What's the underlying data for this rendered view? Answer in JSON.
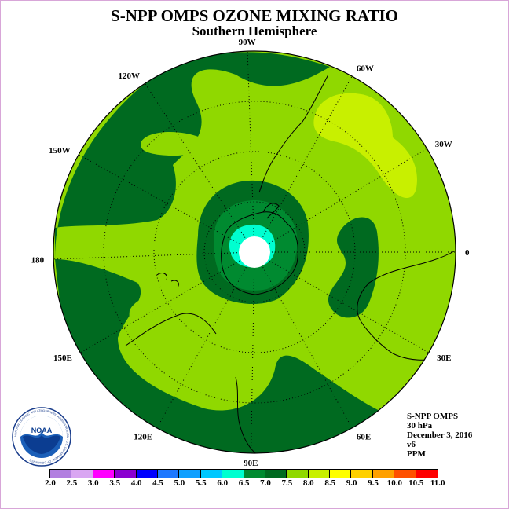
{
  "title": "S-NPP OMPS OZONE MIXING RATIO",
  "subtitle": "Southern Hemisphere",
  "longitude_labels": [
    {
      "id": "lon-90w",
      "text": "90W",
      "angle": 268
    },
    {
      "id": "lon-60w",
      "text": "60W",
      "angle": 299
    },
    {
      "id": "lon-30w",
      "text": "30W",
      "angle": 329
    },
    {
      "id": "lon-0",
      "text": "0",
      "angle": 0
    },
    {
      "id": "lon-30e",
      "text": "30E",
      "angle": 30
    },
    {
      "id": "lon-60e",
      "text": "60E",
      "angle": 61
    },
    {
      "id": "lon-90e",
      "text": "90E",
      "angle": 91
    },
    {
      "id": "lon-120e",
      "text": "120E",
      "angle": 119
    },
    {
      "id": "lon-150e",
      "text": "150E",
      "angle": 150
    },
    {
      "id": "lon-180",
      "text": "180",
      "angle": 178
    },
    {
      "id": "lon-150w",
      "text": "150W",
      "angle": 209
    },
    {
      "id": "lon-120w",
      "text": "120W",
      "angle": 237
    }
  ],
  "info": {
    "instrument": "S-NPP OMPS",
    "level": "30 hPa",
    "date": "December 3, 2016",
    "version": "v6",
    "units": "PPM"
  },
  "logo": {
    "text": "NOAA",
    "ring_text": "NATIONAL OCEANIC AND ATMOSPHERIC ADMINISTRATION · U.S. DEPARTMENT OF COMMERCE"
  },
  "colorbar": {
    "ticks": [
      "2.0",
      "2.5",
      "3.0",
      "3.5",
      "4.0",
      "4.5",
      "5.0",
      "5.5",
      "6.0",
      "6.5",
      "7.0",
      "7.5",
      "8.0",
      "8.5",
      "9.0",
      "9.5",
      "10.0",
      "10.5",
      "11.0"
    ],
    "colors": [
      "#b27fe0",
      "#d9a6f2",
      "#ff00ff",
      "#8a00d0",
      "#0000ff",
      "#1e78ff",
      "#10a0ff",
      "#00c8ff",
      "#00ffd0",
      "#008a30",
      "#006a20",
      "#90d800",
      "#c8f000",
      "#ffff00",
      "#ffd000",
      "#ffa000",
      "#ff5000",
      "#ff0000",
      "#7a4000"
    ]
  },
  "map_colors": {
    "dark_green": "#006a20",
    "medium_green": "#008a30",
    "light_green": "#90d800",
    "yellow_green": "#c8f000",
    "cyan": "#00ffd0",
    "coast": "#000000",
    "missing": "#ffffff"
  }
}
